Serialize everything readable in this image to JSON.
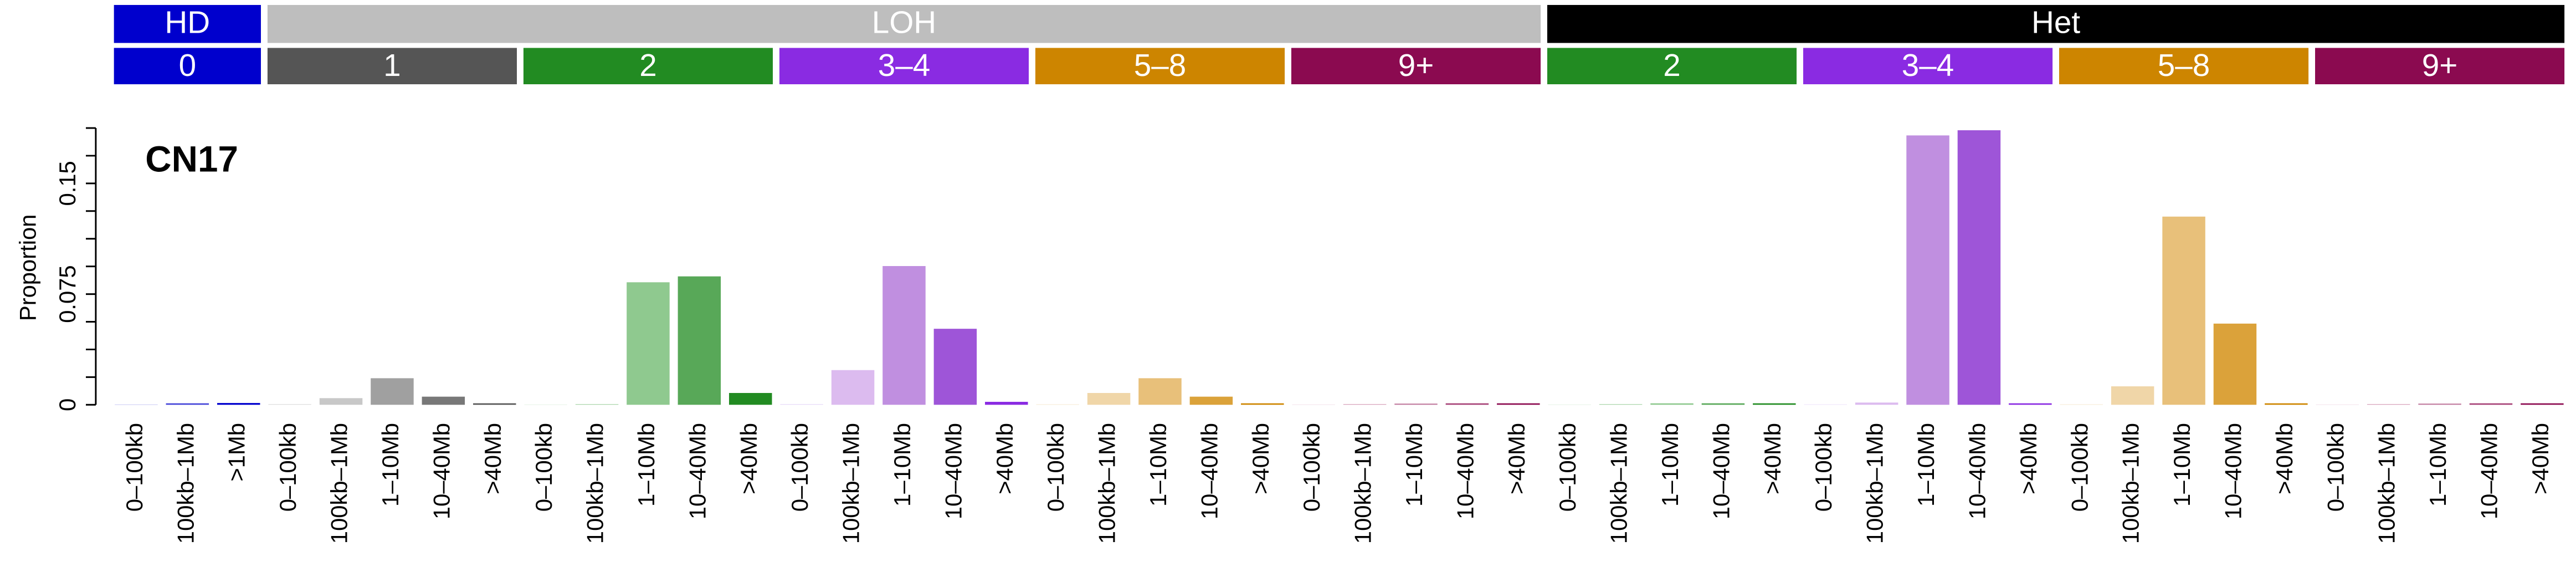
{
  "chart_data": {
    "type": "bar",
    "title": "CN17",
    "ylabel": "Proportion",
    "ylim": [
      0,
      0.1875
    ],
    "yticks": [
      0,
      0.075,
      0.15
    ],
    "y_minor_ticks": [
      0.01875,
      0.0375,
      0.05625,
      0.09375,
      0.1125,
      0.13125,
      0.16875,
      0.1875
    ],
    "groups": [
      {
        "name": "HD",
        "color": "#0000cd",
        "subgroups": [
          {
            "name": "0",
            "color": "#0000cd",
            "categories": [
              "0–100kb",
              "100kb–1Mb",
              ">1Mb"
            ],
            "values": [
              0.0002,
              0.001,
              0.0012
            ],
            "colors": [
              "#9999eb",
              "#4444d8",
              "#0000cd"
            ]
          }
        ]
      },
      {
        "name": "LOH",
        "color": "#bebebe",
        "subgroups": [
          {
            "name": "1",
            "color": "#555555",
            "categories": [
              "0–100kb",
              "100kb–1Mb",
              "1–10Mb",
              "10–40Mb",
              ">40Mb"
            ],
            "values": [
              0.0005,
              0.0045,
              0.018,
              0.0055,
              0.001
            ],
            "colors": [
              "#e0e0e0",
              "#c8c8c8",
              "#a0a0a0",
              "#787878",
              "#555555"
            ]
          },
          {
            "name": "2",
            "color": "#228b22",
            "categories": [
              "0–100kb",
              "100kb–1Mb",
              "1–10Mb",
              "10–40Mb",
              ">40Mb"
            ],
            "values": [
              0.0002,
              0.0005,
              0.083,
              0.087,
              0.008
            ],
            "colors": [
              "#d3e8d3",
              "#b0d8b0",
              "#8fc98f",
              "#58a858",
              "#228b22"
            ]
          },
          {
            "name": "3–4",
            "color": "#8a2be2",
            "categories": [
              "0–100kb",
              "100kb–1Mb",
              "1–10Mb",
              "10–40Mb",
              ">40Mb"
            ],
            "values": [
              0.0005,
              0.0235,
              0.094,
              0.0515,
              0.002
            ],
            "colors": [
              "#eadcf8",
              "#dcbbef",
              "#c08fe0",
              "#9e55d8",
              "#8a2be2"
            ]
          },
          {
            "name": "5–8",
            "color": "#cd8500",
            "categories": [
              "0–100kb",
              "100kb–1Mb",
              "1–10Mb",
              "10–40Mb",
              ">40Mb"
            ],
            "values": [
              0.0003,
              0.008,
              0.018,
              0.0055,
              0.001
            ],
            "colors": [
              "#f5e5c8",
              "#f0d6a8",
              "#e8c07a",
              "#dba23a",
              "#cd8500"
            ]
          },
          {
            "name": "9+",
            "color": "#8b0a50",
            "categories": [
              "0–100kb",
              "100kb–1Mb",
              "1–10Mb",
              "10–40Mb",
              ">40Mb"
            ],
            "values": [
              0.0002,
              0.0005,
              0.0008,
              0.001,
              0.001
            ],
            "colors": [
              "#e8cbd9",
              "#d9a9c0",
              "#c07a9e",
              "#a64277",
              "#8b0a50"
            ]
          }
        ]
      },
      {
        "name": "Het",
        "color": "#000000",
        "subgroups": [
          {
            "name": "2",
            "color": "#228b22",
            "categories": [
              "0–100kb",
              "100kb–1Mb",
              "1–10Mb",
              "10–40Mb",
              ">40Mb"
            ],
            "values": [
              0.0002,
              0.0005,
              0.001,
              0.001,
              0.001
            ],
            "colors": [
              "#d3e8d3",
              "#b0d8b0",
              "#8fc98f",
              "#58a858",
              "#228b22"
            ]
          },
          {
            "name": "3–4",
            "color": "#8a2be2",
            "categories": [
              "0–100kb",
              "100kb–1Mb",
              "1–10Mb",
              "10–40Mb",
              ">40Mb"
            ],
            "values": [
              0.0003,
              0.0015,
              0.1825,
              0.186,
              0.001
            ],
            "colors": [
              "#eadcf8",
              "#dcbbef",
              "#c08fe0",
              "#9e55d8",
              "#8a2be2"
            ]
          },
          {
            "name": "5–8",
            "color": "#cd8500",
            "categories": [
              "0–100kb",
              "100kb–1Mb",
              "1–10Mb",
              "10–40Mb",
              ">40Mb"
            ],
            "values": [
              0.0003,
              0.0125,
              0.1275,
              0.055,
              0.001
            ],
            "colors": [
              "#f5e5c8",
              "#f0d6a8",
              "#e8c07a",
              "#dba23a",
              "#cd8500"
            ]
          },
          {
            "name": "9+",
            "color": "#8b0a50",
            "categories": [
              "0–100kb",
              "100kb–1Mb",
              "1–10Mb",
              "10–40Mb",
              ">40Mb"
            ],
            "values": [
              0.0002,
              0.0005,
              0.0008,
              0.001,
              0.001
            ],
            "colors": [
              "#e8cbd9",
              "#d9a9c0",
              "#c07a9e",
              "#a64277",
              "#8b0a50"
            ]
          }
        ]
      }
    ]
  }
}
